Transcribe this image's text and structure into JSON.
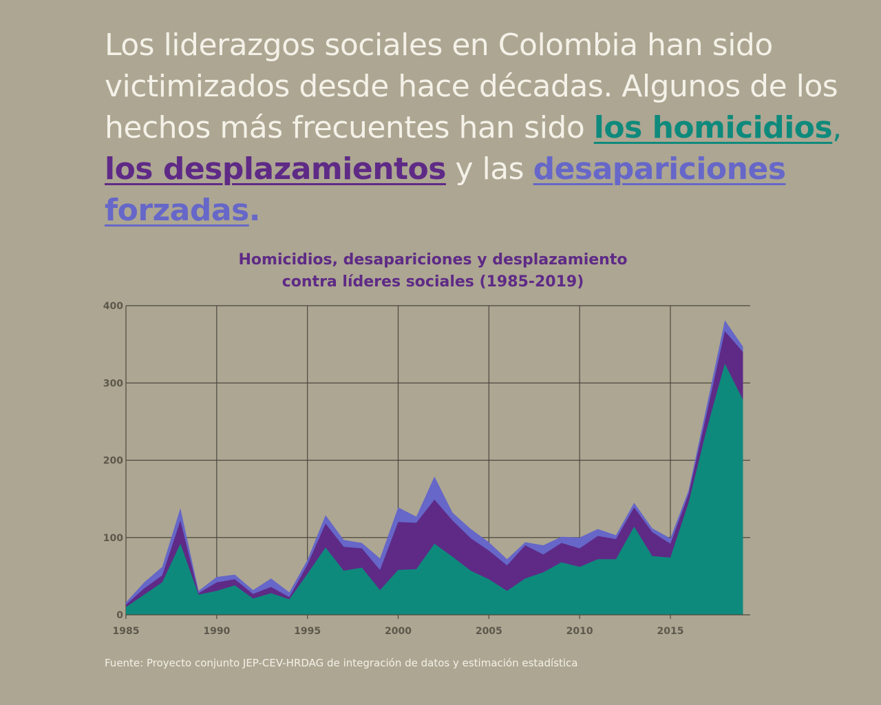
{
  "headline": {
    "part1": "Los liderazgos sociales en Colombia han sido victimizados desde hace décadas. Algunos de los hechos más frecuentes han sido ",
    "homicidios": "los homicidios",
    "sep1": ", ",
    "desplazamientos": "los desplazamientos",
    "sep2": " y las ",
    "desapariciones": "desapariciones forzadas",
    "end": "."
  },
  "colors": {
    "background": "#ADA692",
    "homicidios": "#0E8A7C",
    "desplazamiento": "#5E2A86",
    "desapariciones": "#6667C8",
    "headline_text": "#F4F1E8"
  },
  "chart_data": {
    "type": "area",
    "stacked": true,
    "title": "Homicidios, desapariciones y desplazamiento contra líderes sociales (1985-2019)",
    "title_lines": [
      "Homicidios, desapariciones y desplazamiento",
      "contra líderes sociales (1985-2019)"
    ],
    "xlabel": "",
    "ylabel": "",
    "xlim": [
      1985,
      2019.4
    ],
    "ylim": [
      0,
      400
    ],
    "x_ticks": [
      "1985",
      "1990",
      "1995",
      "2000",
      "2005",
      "2010",
      "2015"
    ],
    "y_ticks": [
      "0",
      "100",
      "200",
      "300",
      "400"
    ],
    "grid": true,
    "legend": "none",
    "x": [
      1985,
      1986,
      1987,
      1988,
      1989,
      1990,
      1991,
      1992,
      1993,
      1994,
      1995,
      1996,
      1997,
      1998,
      1999,
      2000,
      2001,
      2002,
      2003,
      2004,
      2005,
      2006,
      2007,
      2008,
      2009,
      2010,
      2011,
      2012,
      2013,
      2014,
      2015,
      2016,
      2017,
      2018,
      2019
    ],
    "series": [
      {
        "name": "los homicidios",
        "color": "#0E8A7C",
        "values": [
          10,
          26,
          42,
          92,
          26,
          31,
          38,
          21,
          28,
          20,
          53,
          87,
          57,
          61,
          32,
          58,
          59,
          92,
          75,
          57,
          46,
          31,
          47,
          55,
          68,
          62,
          72,
          72,
          114,
          76,
          74,
          145,
          240,
          325,
          278
        ]
      },
      {
        "name": "los desplazamientos",
        "color": "#5E2A86",
        "values": [
          3,
          8,
          9,
          30,
          2,
          11,
          8,
          6,
          8,
          3,
          12,
          31,
          31,
          25,
          26,
          62,
          60,
          57,
          47,
          42,
          37,
          33,
          43,
          23,
          25,
          24,
          30,
          26,
          25,
          31,
          18,
          11,
          20,
          42,
          62
        ]
      },
      {
        "name": "desapariciones forzadas",
        "color": "#6667C8",
        "values": [
          3,
          8,
          11,
          16,
          3,
          7,
          6,
          5,
          11,
          6,
          6,
          11,
          9,
          7,
          15,
          19,
          8,
          30,
          10,
          12,
          11,
          8,
          4,
          12,
          8,
          14,
          9,
          5,
          6,
          5,
          7,
          5,
          10,
          14,
          7
        ]
      }
    ]
  },
  "source": "Fuente: Proyecto conjunto JEP-CEV-HRDAG de integración de datos y estimación estadística"
}
